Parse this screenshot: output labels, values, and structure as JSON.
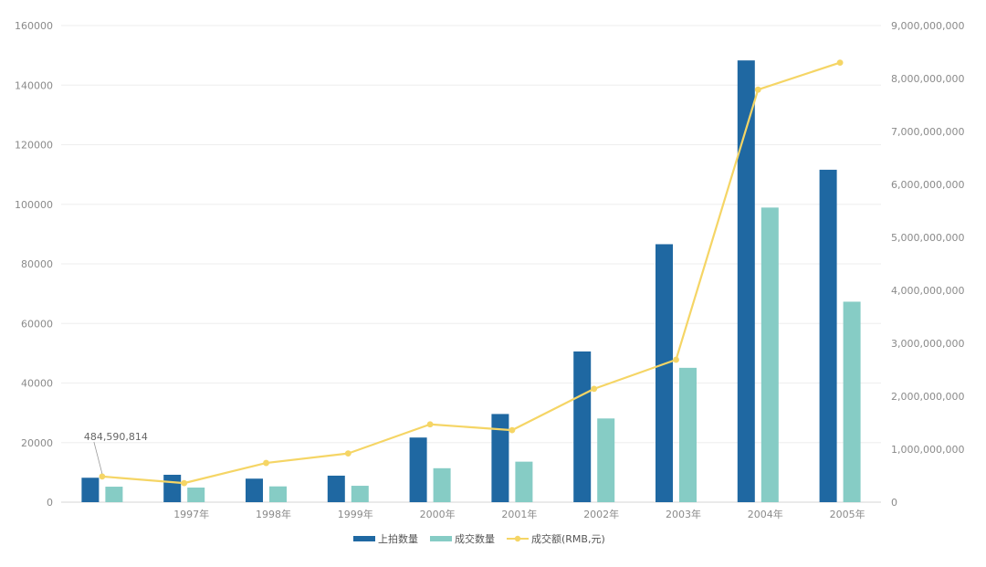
{
  "chart_data": {
    "type": "bar",
    "categories": [
      "",
      "1997年",
      "1998年",
      "1999年",
      "2000年",
      "2001年",
      "2002年",
      "2003年",
      "2004年",
      "2005年"
    ],
    "series": [
      {
        "name": "上拍数量",
        "kind": "bar",
        "axis": "left",
        "color": "#1f68a2",
        "values": [
          8200,
          9200,
          7900,
          8900,
          21700,
          29600,
          50600,
          86600,
          148300,
          111600
        ]
      },
      {
        "name": "成交数量",
        "kind": "bar",
        "axis": "left",
        "color": "#86ccc5",
        "values": [
          5200,
          4900,
          5300,
          5500,
          11400,
          13600,
          28100,
          45100,
          98900,
          67300
        ]
      },
      {
        "name": "成交额(RMB,元)",
        "kind": "line",
        "axis": "right",
        "color": "#f5d565",
        "values": [
          484590814,
          360000000,
          740000000,
          920000000,
          1470000000,
          1360000000,
          2140000000,
          2690000000,
          7790000000,
          8300000000
        ]
      }
    ],
    "y_left": {
      "min": 0,
      "max": 160000,
      "ticks": [
        "0",
        "20000",
        "40000",
        "60000",
        "80000",
        "100000",
        "120000",
        "140000",
        "160000"
      ]
    },
    "y_right": {
      "min": 0,
      "max": 9000000000,
      "ticks": [
        "0",
        "1,000,000,000",
        "2,000,000,000",
        "3,000,000,000",
        "4,000,000,000",
        "5,000,000,000",
        "6,000,000,000",
        "7,000,000,000",
        "8,000,000,000",
        "9,000,000,000"
      ]
    },
    "annotations": [
      {
        "series": 2,
        "index": 0,
        "text": "484,590,814"
      }
    ],
    "legend_position": "bottom",
    "grid": true,
    "title": "",
    "xlabel": "",
    "ylabel": ""
  }
}
